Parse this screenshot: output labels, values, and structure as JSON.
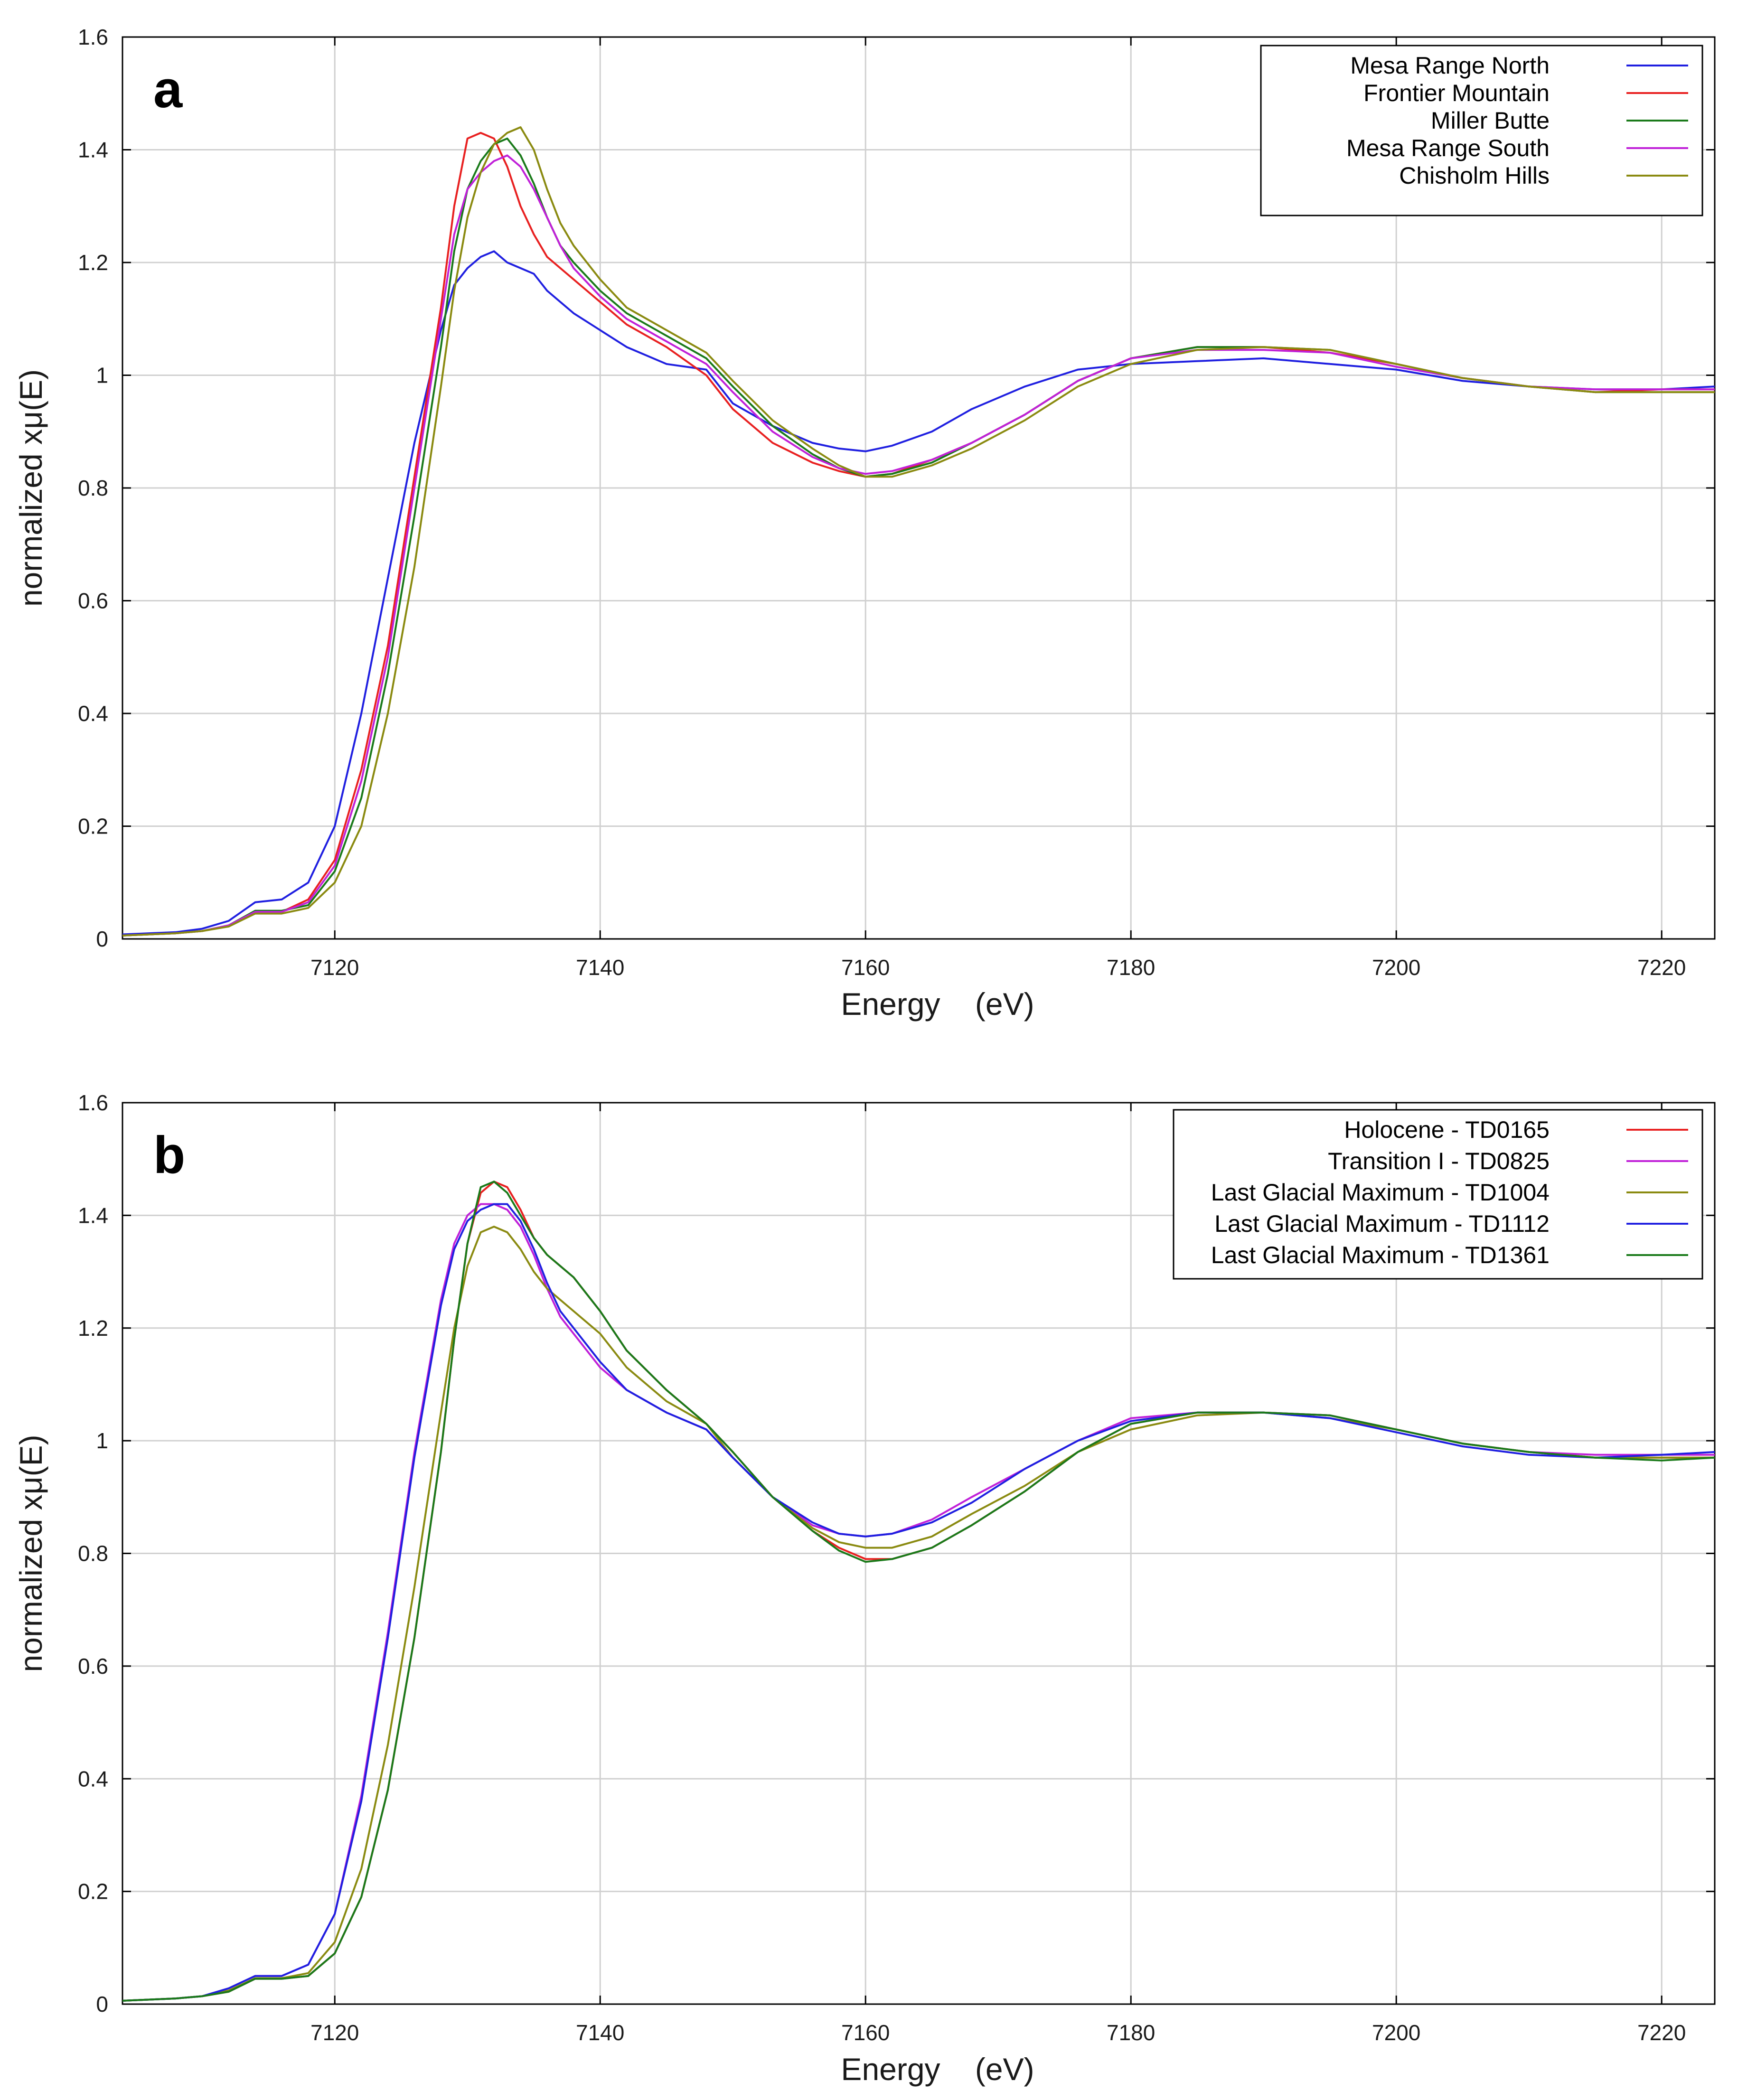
{
  "chart_data": [
    {
      "type": "line",
      "panel": "a",
      "xlabel": "Energy    (eV)",
      "ylabel": "normalized xμ(E)",
      "xlim": [
        7104,
        7224
      ],
      "ylim": [
        0,
        1.6
      ],
      "xticks": [
        7120,
        7140,
        7160,
        7180,
        7200,
        7220
      ],
      "yticks": [
        0,
        0.2,
        0.4,
        0.6,
        0.8,
        1,
        1.2,
        1.4,
        1.6
      ],
      "grid": true,
      "legend_position": "top-right",
      "series": [
        {
          "name": "Mesa Range North",
          "color": "#1f1fe0",
          "x": [
            7104,
            7108,
            7110,
            7112,
            7114,
            7116,
            7118,
            7120,
            7122,
            7124,
            7126,
            7128,
            7129,
            7130,
            7131,
            7132,
            7133,
            7134,
            7135,
            7136,
            7137,
            7138,
            7140,
            7142,
            7145,
            7148,
            7150,
            7153,
            7156,
            7158,
            7160,
            7162,
            7165,
            7168,
            7172,
            7176,
            7180,
            7185,
            7190,
            7195,
            7200,
            7205,
            7210,
            7215,
            7220,
            7224
          ],
          "y": [
            0.008,
            0.012,
            0.018,
            0.032,
            0.065,
            0.07,
            0.1,
            0.2,
            0.4,
            0.64,
            0.88,
            1.08,
            1.16,
            1.19,
            1.21,
            1.22,
            1.2,
            1.19,
            1.18,
            1.15,
            1.13,
            1.11,
            1.08,
            1.05,
            1.02,
            1.01,
            0.95,
            0.91,
            0.88,
            0.87,
            0.865,
            0.875,
            0.9,
            0.94,
            0.98,
            1.01,
            1.02,
            1.025,
            1.03,
            1.02,
            1.01,
            0.99,
            0.98,
            0.975,
            0.975,
            0.98
          ]
        },
        {
          "name": "Frontier Mountain",
          "color": "#e82020",
          "x": [
            7104,
            7108,
            7110,
            7112,
            7114,
            7116,
            7118,
            7120,
            7122,
            7124,
            7126,
            7128,
            7129,
            7130,
            7131,
            7132,
            7133,
            7134,
            7135,
            7136,
            7137,
            7138,
            7140,
            7142,
            7145,
            7148,
            7150,
            7153,
            7156,
            7158,
            7160,
            7162,
            7165,
            7168,
            7172,
            7176,
            7180,
            7185,
            7190,
            7195,
            7200,
            7205,
            7210,
            7215,
            7220,
            7224
          ],
          "y": [
            0.006,
            0.01,
            0.014,
            0.024,
            0.048,
            0.048,
            0.07,
            0.14,
            0.3,
            0.52,
            0.82,
            1.12,
            1.3,
            1.42,
            1.43,
            1.42,
            1.37,
            1.3,
            1.25,
            1.21,
            1.19,
            1.17,
            1.13,
            1.09,
            1.05,
            1.0,
            0.94,
            0.88,
            0.845,
            0.83,
            0.82,
            0.825,
            0.85,
            0.88,
            0.93,
            0.99,
            1.03,
            1.05,
            1.05,
            1.04,
            1.02,
            0.995,
            0.98,
            0.97,
            0.975,
            0.975
          ]
        },
        {
          "name": "Miller Butte",
          "color": "#1a7a1a",
          "x": [
            7104,
            7108,
            7110,
            7112,
            7114,
            7116,
            7118,
            7120,
            7122,
            7124,
            7126,
            7128,
            7129,
            7130,
            7131,
            7132,
            7133,
            7134,
            7135,
            7136,
            7137,
            7138,
            7140,
            7142,
            7145,
            7148,
            7150,
            7153,
            7156,
            7158,
            7160,
            7162,
            7165,
            7168,
            7172,
            7176,
            7180,
            7185,
            7190,
            7195,
            7200,
            7205,
            7210,
            7215,
            7220,
            7224
          ],
          "y": [
            0.006,
            0.01,
            0.014,
            0.024,
            0.05,
            0.05,
            0.06,
            0.12,
            0.25,
            0.47,
            0.75,
            1.05,
            1.22,
            1.33,
            1.38,
            1.41,
            1.42,
            1.39,
            1.34,
            1.28,
            1.23,
            1.2,
            1.15,
            1.11,
            1.07,
            1.03,
            0.98,
            0.91,
            0.86,
            0.835,
            0.82,
            0.825,
            0.845,
            0.88,
            0.93,
            0.99,
            1.03,
            1.05,
            1.05,
            1.045,
            1.02,
            0.995,
            0.98,
            0.97,
            0.97,
            0.97
          ]
        },
        {
          "name": "Mesa Range South",
          "color": "#c020d8",
          "x": [
            7104,
            7108,
            7110,
            7112,
            7114,
            7116,
            7118,
            7120,
            7122,
            7124,
            7126,
            7128,
            7129,
            7130,
            7131,
            7132,
            7133,
            7134,
            7135,
            7136,
            7137,
            7138,
            7140,
            7142,
            7145,
            7148,
            7150,
            7153,
            7156,
            7158,
            7160,
            7162,
            7165,
            7168,
            7172,
            7176,
            7180,
            7185,
            7190,
            7195,
            7200,
            7205,
            7210,
            7215,
            7220,
            7224
          ],
          "y": [
            0.006,
            0.01,
            0.014,
            0.024,
            0.048,
            0.048,
            0.065,
            0.13,
            0.28,
            0.5,
            0.8,
            1.1,
            1.25,
            1.33,
            1.36,
            1.38,
            1.39,
            1.37,
            1.33,
            1.28,
            1.23,
            1.19,
            1.14,
            1.1,
            1.06,
            1.02,
            0.97,
            0.9,
            0.855,
            0.835,
            0.825,
            0.83,
            0.85,
            0.88,
            0.93,
            0.99,
            1.03,
            1.045,
            1.045,
            1.04,
            1.015,
            0.995,
            0.98,
            0.975,
            0.975,
            0.975
          ]
        },
        {
          "name": "Chisholm Hills",
          "color": "#8a8a10",
          "x": [
            7104,
            7108,
            7110,
            7112,
            7114,
            7116,
            7118,
            7120,
            7122,
            7124,
            7126,
            7128,
            7129,
            7130,
            7131,
            7132,
            7133,
            7134,
            7135,
            7136,
            7137,
            7138,
            7140,
            7142,
            7145,
            7148,
            7150,
            7153,
            7156,
            7158,
            7160,
            7162,
            7165,
            7168,
            7172,
            7176,
            7180,
            7185,
            7190,
            7195,
            7200,
            7205,
            7210,
            7215,
            7220,
            7224
          ],
          "y": [
            0.006,
            0.01,
            0.014,
            0.022,
            0.045,
            0.045,
            0.055,
            0.1,
            0.2,
            0.4,
            0.66,
            0.98,
            1.15,
            1.28,
            1.36,
            1.41,
            1.43,
            1.44,
            1.4,
            1.33,
            1.27,
            1.23,
            1.17,
            1.12,
            1.08,
            1.04,
            0.99,
            0.92,
            0.87,
            0.84,
            0.82,
            0.82,
            0.84,
            0.87,
            0.92,
            0.98,
            1.02,
            1.045,
            1.05,
            1.045,
            1.02,
            0.995,
            0.98,
            0.97,
            0.97,
            0.97
          ]
        }
      ]
    },
    {
      "type": "line",
      "panel": "b",
      "xlabel": "Energy    (eV)",
      "ylabel": "normalized xμ(E)",
      "xlim": [
        7104,
        7224
      ],
      "ylim": [
        0,
        1.6
      ],
      "xticks": [
        7120,
        7140,
        7160,
        7180,
        7200,
        7220
      ],
      "yticks": [
        0,
        0.2,
        0.4,
        0.6,
        0.8,
        1,
        1.2,
        1.4,
        1.6
      ],
      "grid": true,
      "legend_position": "top-right",
      "series": [
        {
          "name": "Holocene - TD0165",
          "color": "#e82020",
          "x": [
            7104,
            7108,
            7110,
            7112,
            7114,
            7116,
            7118,
            7120,
            7122,
            7124,
            7126,
            7128,
            7129,
            7130,
            7131,
            7132,
            7133,
            7134,
            7135,
            7136,
            7137,
            7138,
            7140,
            7142,
            7145,
            7148,
            7150,
            7153,
            7156,
            7158,
            7160,
            7162,
            7165,
            7168,
            7172,
            7176,
            7180,
            7185,
            7190,
            7195,
            7200,
            7205,
            7210,
            7215,
            7220,
            7224
          ],
          "y": [
            0.006,
            0.01,
            0.014,
            0.022,
            0.045,
            0.045,
            0.05,
            0.09,
            0.19,
            0.38,
            0.65,
            0.98,
            1.18,
            1.35,
            1.44,
            1.46,
            1.45,
            1.41,
            1.36,
            1.33,
            1.31,
            1.29,
            1.23,
            1.16,
            1.09,
            1.03,
            0.98,
            0.9,
            0.84,
            0.81,
            0.79,
            0.79,
            0.81,
            0.85,
            0.91,
            0.98,
            1.03,
            1.05,
            1.05,
            1.045,
            1.02,
            0.995,
            0.98,
            0.97,
            0.97,
            0.97
          ]
        },
        {
          "name": "Transition I - TD0825",
          "color": "#c020d8",
          "x": [
            7104,
            7108,
            7110,
            7112,
            7114,
            7116,
            7118,
            7120,
            7122,
            7124,
            7126,
            7128,
            7129,
            7130,
            7131,
            7132,
            7133,
            7134,
            7135,
            7136,
            7137,
            7138,
            7140,
            7142,
            7145,
            7148,
            7150,
            7153,
            7156,
            7158,
            7160,
            7162,
            7165,
            7168,
            7172,
            7176,
            7180,
            7185,
            7190,
            7195,
            7200,
            7205,
            7210,
            7215,
            7220,
            7224
          ],
          "y": [
            0.006,
            0.01,
            0.014,
            0.028,
            0.05,
            0.05,
            0.07,
            0.16,
            0.37,
            0.66,
            0.98,
            1.25,
            1.35,
            1.4,
            1.42,
            1.42,
            1.41,
            1.38,
            1.33,
            1.27,
            1.22,
            1.19,
            1.13,
            1.09,
            1.05,
            1.02,
            0.97,
            0.9,
            0.85,
            0.835,
            0.83,
            0.835,
            0.86,
            0.9,
            0.95,
            1.0,
            1.04,
            1.05,
            1.05,
            1.045,
            1.02,
            0.995,
            0.98,
            0.975,
            0.975,
            0.975
          ]
        },
        {
          "name": "Last Glacial Maximum - TD1004",
          "color": "#8a8a10",
          "x": [
            7104,
            7108,
            7110,
            7112,
            7114,
            7116,
            7118,
            7120,
            7122,
            7124,
            7126,
            7128,
            7129,
            7130,
            7131,
            7132,
            7133,
            7134,
            7135,
            7136,
            7137,
            7138,
            7140,
            7142,
            7145,
            7148,
            7150,
            7153,
            7156,
            7158,
            7160,
            7162,
            7165,
            7168,
            7172,
            7176,
            7180,
            7185,
            7190,
            7195,
            7200,
            7205,
            7210,
            7215,
            7220,
            7224
          ],
          "y": [
            0.006,
            0.01,
            0.014,
            0.024,
            0.046,
            0.046,
            0.055,
            0.11,
            0.24,
            0.46,
            0.74,
            1.05,
            1.2,
            1.31,
            1.37,
            1.38,
            1.37,
            1.34,
            1.3,
            1.27,
            1.25,
            1.23,
            1.19,
            1.13,
            1.07,
            1.03,
            0.97,
            0.9,
            0.845,
            0.82,
            0.81,
            0.81,
            0.83,
            0.87,
            0.92,
            0.98,
            1.02,
            1.045,
            1.05,
            1.04,
            1.02,
            0.995,
            0.98,
            0.97,
            0.97,
            0.97
          ]
        },
        {
          "name": "Last Glacial Maximum - TD1112",
          "color": "#1f1fe0",
          "x": [
            7104,
            7108,
            7110,
            7112,
            7114,
            7116,
            7118,
            7120,
            7122,
            7124,
            7126,
            7128,
            7129,
            7130,
            7131,
            7132,
            7133,
            7134,
            7135,
            7136,
            7137,
            7138,
            7140,
            7142,
            7145,
            7148,
            7150,
            7153,
            7156,
            7158,
            7160,
            7162,
            7165,
            7168,
            7172,
            7176,
            7180,
            7185,
            7190,
            7195,
            7200,
            7205,
            7210,
            7215,
            7220,
            7224
          ],
          "y": [
            0.006,
            0.01,
            0.014,
            0.028,
            0.05,
            0.05,
            0.07,
            0.16,
            0.36,
            0.65,
            0.97,
            1.24,
            1.34,
            1.39,
            1.41,
            1.42,
            1.42,
            1.39,
            1.34,
            1.28,
            1.23,
            1.2,
            1.14,
            1.09,
            1.05,
            1.02,
            0.97,
            0.9,
            0.855,
            0.835,
            0.83,
            0.835,
            0.855,
            0.89,
            0.95,
            1.0,
            1.035,
            1.05,
            1.05,
            1.04,
            1.015,
            0.99,
            0.975,
            0.97,
            0.975,
            0.98
          ]
        },
        {
          "name": "Last Glacial Maximum - TD1361",
          "color": "#1a7a1a",
          "x": [
            7104,
            7108,
            7110,
            7112,
            7114,
            7116,
            7118,
            7120,
            7122,
            7124,
            7126,
            7128,
            7129,
            7130,
            7131,
            7132,
            7133,
            7134,
            7135,
            7136,
            7137,
            7138,
            7140,
            7142,
            7145,
            7148,
            7150,
            7153,
            7156,
            7158,
            7160,
            7162,
            7165,
            7168,
            7172,
            7176,
            7180,
            7185,
            7190,
            7195,
            7200,
            7205,
            7210,
            7215,
            7220,
            7224
          ],
          "y": [
            0.006,
            0.01,
            0.014,
            0.022,
            0.045,
            0.045,
            0.05,
            0.09,
            0.19,
            0.38,
            0.65,
            0.98,
            1.18,
            1.35,
            1.45,
            1.46,
            1.44,
            1.4,
            1.36,
            1.33,
            1.31,
            1.29,
            1.23,
            1.16,
            1.09,
            1.03,
            0.98,
            0.9,
            0.84,
            0.805,
            0.785,
            0.79,
            0.81,
            0.85,
            0.91,
            0.98,
            1.03,
            1.05,
            1.05,
            1.045,
            1.02,
            0.995,
            0.98,
            0.97,
            0.965,
            0.97
          ]
        }
      ]
    }
  ]
}
